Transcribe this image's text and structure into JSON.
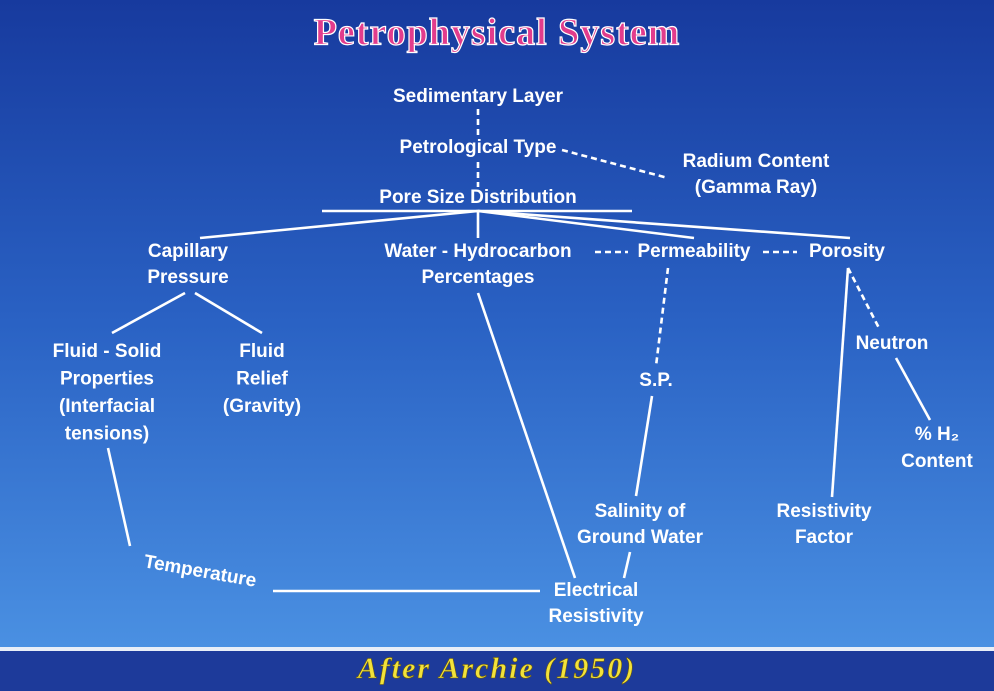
{
  "title": "Petrophysical System",
  "nodes": [
    {
      "lines": [
        "Sedimentary Layer"
      ]
    },
    {
      "lines": [
        "Petrological Type"
      ]
    },
    {
      "lines": [
        "Radium Content",
        "(Gamma Ray)"
      ]
    },
    {
      "lines": [
        "Pore Size Distribution"
      ]
    },
    {
      "lines": [
        "Capillary",
        "Pressure"
      ]
    },
    {
      "lines": [
        "Water - Hydrocarbon",
        "Percentages"
      ]
    },
    {
      "lines": [
        "Permeability"
      ]
    },
    {
      "lines": [
        "Porosity"
      ]
    },
    {
      "lines": [
        "Fluid - Solid",
        "Properties",
        "(Interfacial",
        "tensions)"
      ]
    },
    {
      "lines": [
        "Fluid",
        "Relief",
        "(Gravity)"
      ]
    },
    {
      "lines": [
        "Neutron"
      ]
    },
    {
      "lines": [
        "S.P."
      ]
    },
    {
      "lines": [
        "% H₂",
        "Content"
      ]
    },
    {
      "lines": [
        "Salinity of",
        "Ground Water"
      ]
    },
    {
      "lines": [
        "Resistivity",
        "Factor"
      ]
    },
    {
      "lines": [
        "Temperature"
      ]
    },
    {
      "lines": [
        "Electrical",
        "Resistivity"
      ]
    }
  ],
  "footer": "After Archie (1950)"
}
